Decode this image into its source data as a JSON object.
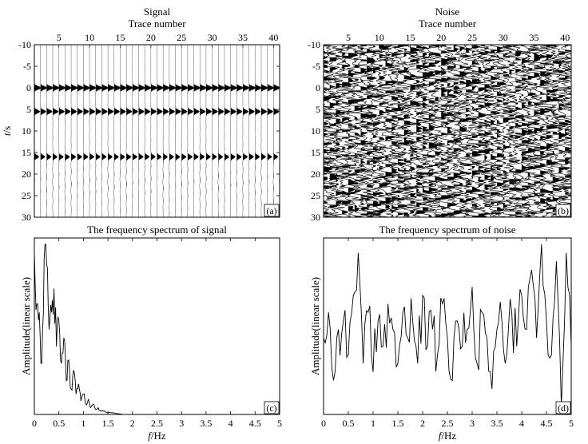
{
  "chart_data": [
    {
      "id": "a",
      "type": "seismic-wiggle",
      "title": "Signal",
      "xlabel": "Trace number",
      "ylabel": "t/s",
      "panel_label": "(a)",
      "traces": 41,
      "xlim": [
        1,
        41
      ],
      "x_ticks": [
        5,
        10,
        15,
        20,
        25,
        30,
        35,
        40
      ],
      "ylim": [
        -10,
        30
      ],
      "y_ticks": [
        -10,
        -5,
        0,
        5,
        10,
        15,
        20,
        25,
        30
      ],
      "events_t": [
        0,
        5.5,
        16
      ]
    },
    {
      "id": "b",
      "type": "seismic-wiggle",
      "title": "Noise",
      "xlabel": "Trace number",
      "ylabel": "",
      "panel_label": "(b)",
      "traces": 41,
      "xlim": [
        1,
        41
      ],
      "x_ticks": [
        5,
        10,
        15,
        20,
        25,
        30,
        35,
        40
      ],
      "ylim": [
        -10,
        30
      ],
      "y_ticks": [
        -10,
        -5,
        0,
        5,
        10,
        15,
        20,
        25,
        30
      ]
    },
    {
      "id": "c",
      "type": "line",
      "title": "The frequency spectrum of signal",
      "xlabel": "f/Hz",
      "ylabel": "Amplitude(linear scale)",
      "panel_label": "(c)",
      "xlim": [
        0,
        5
      ],
      "x_ticks": [
        0,
        0.5,
        1,
        1.5,
        2,
        2.5,
        3,
        3.5,
        4,
        4.5,
        5
      ],
      "x_tick_labels": [
        "0",
        "0.5",
        "1",
        "1.5",
        "2",
        "2.5",
        "3",
        "3.5",
        "4",
        "4.5",
        "5"
      ],
      "ylim": [
        0,
        1
      ],
      "x": [
        0,
        0.05,
        0.1,
        0.15,
        0.2,
        0.25,
        0.3,
        0.35,
        0.4,
        0.45,
        0.5,
        0.55,
        0.6,
        0.65,
        0.7,
        0.75,
        0.8,
        0.85,
        0.9,
        0.95,
        1.0,
        1.05,
        1.1,
        1.15,
        1.2,
        1.25,
        1.3,
        1.35,
        1.4,
        1.5,
        1.6,
        1.7,
        1.8,
        2.0,
        2.5,
        5.0
      ],
      "y": [
        0.95,
        0.65,
        0.6,
        0.3,
        0.92,
        0.88,
        0.5,
        0.6,
        0.74,
        0.4,
        0.55,
        0.3,
        0.45,
        0.2,
        0.32,
        0.15,
        0.26,
        0.12,
        0.18,
        0.08,
        0.12,
        0.06,
        0.09,
        0.04,
        0.06,
        0.03,
        0.04,
        0.02,
        0.02,
        0.01,
        0.01,
        0.005,
        0.0,
        0.0,
        0.0,
        0.0
      ]
    },
    {
      "id": "d",
      "type": "line",
      "title": "The frequency spectrum of noise",
      "xlabel": "f/Hz",
      "ylabel": "Amplitude(linear scale)",
      "panel_label": "(d)",
      "xlim": [
        0,
        5
      ],
      "x_ticks": [
        0,
        0.5,
        1,
        1.5,
        2,
        2.5,
        3,
        3.5,
        4,
        4.5,
        5
      ],
      "x_tick_labels": [
        "0",
        "0.5",
        "1",
        "1.5",
        "2",
        "2.5",
        "3",
        "3.5",
        "4",
        "4.5",
        "5"
      ],
      "ylim": [
        0,
        1
      ],
      "x": [
        0,
        0.1,
        0.2,
        0.3,
        0.4,
        0.5,
        0.6,
        0.7,
        0.8,
        0.9,
        1.0,
        1.1,
        1.2,
        1.3,
        1.4,
        1.5,
        1.6,
        1.7,
        1.8,
        1.9,
        2.0,
        2.1,
        2.2,
        2.3,
        2.4,
        2.5,
        2.6,
        2.7,
        2.8,
        2.9,
        3.0,
        3.1,
        3.2,
        3.3,
        3.4,
        3.5,
        3.6,
        3.7,
        3.8,
        3.9,
        4.0,
        4.1,
        4.2,
        4.3,
        4.4,
        4.5,
        4.6,
        4.7,
        4.8,
        4.9,
        5.0
      ],
      "y": [
        0.45,
        0.6,
        0.2,
        0.5,
        0.55,
        0.35,
        0.7,
        0.95,
        0.3,
        0.6,
        0.25,
        0.55,
        0.4,
        0.65,
        0.5,
        0.3,
        0.6,
        0.45,
        0.55,
        0.3,
        0.7,
        0.4,
        0.5,
        0.35,
        0.65,
        0.45,
        0.2,
        0.55,
        0.4,
        0.5,
        0.75,
        0.3,
        0.6,
        0.45,
        0.15,
        0.5,
        0.55,
        0.35,
        0.6,
        0.4,
        0.7,
        0.5,
        0.85,
        0.45,
        1.0,
        0.55,
        0.35,
        0.9,
        0.05,
        0.95,
        0.4
      ]
    }
  ]
}
